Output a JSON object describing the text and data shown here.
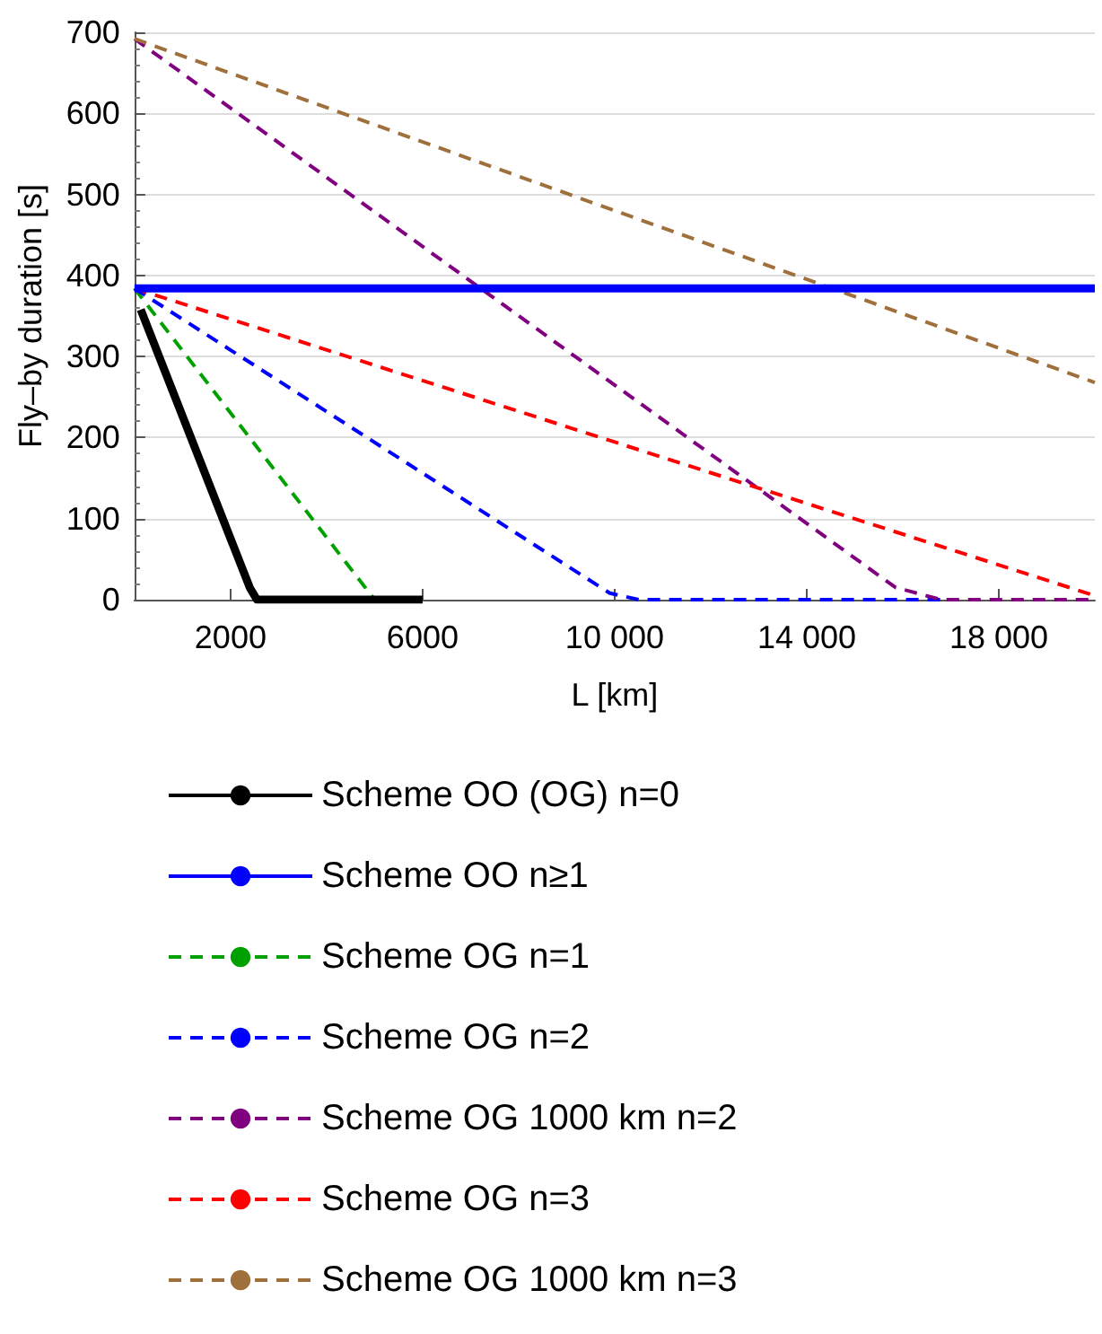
{
  "chart_data": {
    "type": "line",
    "xlabel": "L [km]",
    "ylabel": "Fly–by duration [s]",
    "xlim": [
      0,
      20000
    ],
    "ylim": [
      0,
      700
    ],
    "xticks": [
      2000,
      6000,
      {
        "value": 10000,
        "label": "10 000"
      },
      {
        "value": 14000,
        "label": "14 000"
      },
      {
        "value": 18000,
        "label": "18 000"
      }
    ],
    "yticks": [
      0,
      100,
      200,
      300,
      400,
      500,
      600,
      700
    ],
    "grid": "y",
    "legend": "bottom",
    "marker": "none",
    "series": [
      {
        "name": "Scheme OO (OG) n=0",
        "color": "#000000",
        "line_style": "solid",
        "x": [
          130,
          2400,
          2550,
          6000
        ],
        "values": [
          358,
          15,
          0,
          0
        ]
      },
      {
        "name": "Scheme OO n≥1",
        "color": "#0000ff",
        "line_style": "solid",
        "x": [
          0,
          20000
        ],
        "values": [
          384,
          384
        ]
      },
      {
        "name": "Scheme OG n=1",
        "color": "#00a000",
        "line_style": "dashed",
        "x": [
          0,
          5000,
          5800
        ],
        "values": [
          384,
          0,
          0
        ]
      },
      {
        "name": "Scheme OG n=2",
        "color": "#0000ff",
        "line_style": "dashed",
        "x": [
          0,
          9900,
          10500,
          17000
        ],
        "values": [
          384,
          8,
          0,
          0
        ]
      },
      {
        "name": "Scheme OG 1000 km n=2",
        "color": "#800080",
        "line_style": "dashed",
        "x": [
          0,
          15850,
          16800,
          20000
        ],
        "values": [
          692,
          15,
          0,
          0
        ]
      },
      {
        "name": "Scheme OG n=3",
        "color": "#ff0000",
        "line_style": "dashed",
        "x": [
          0,
          20000
        ],
        "values": [
          384,
          5
        ]
      },
      {
        "name": "Scheme OG 1000 km n=3",
        "color": "#a0703c",
        "line_style": "dashed",
        "x": [
          0,
          20000
        ],
        "values": [
          692,
          268
        ]
      }
    ]
  }
}
